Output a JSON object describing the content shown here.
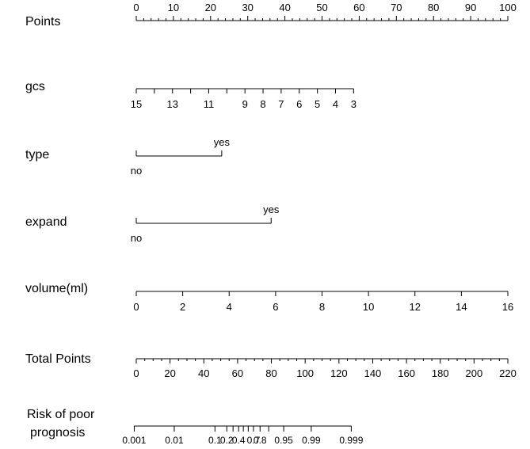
{
  "chart_data": {
    "type": "nomogram",
    "rows": [
      {
        "id": "points",
        "label": "Points",
        "kind": "numeric",
        "label_position": "above",
        "ticks": [
          0,
          10,
          20,
          30,
          40,
          50,
          60,
          70,
          80,
          90,
          100
        ],
        "minor_step": 2,
        "points_range": [
          0,
          100
        ]
      },
      {
        "id": "gcs",
        "label": "gcs",
        "kind": "numeric",
        "label_position": "below",
        "value_range": [
          15,
          3
        ],
        "points_range": [
          0,
          58.5
        ],
        "ticks": [
          15,
          13,
          11,
          9,
          8,
          7,
          6,
          5,
          4,
          3
        ],
        "unlabeled_ticks": [
          14,
          12,
          10
        ]
      },
      {
        "id": "type",
        "label": "type",
        "kind": "categorical",
        "levels": [
          {
            "label": "no",
            "points": 0,
            "label_side": "below"
          },
          {
            "label": "yes",
            "points": 23,
            "label_side": "above"
          }
        ]
      },
      {
        "id": "expand",
        "label": "expand",
        "kind": "categorical",
        "levels": [
          {
            "label": "no",
            "points": 0,
            "label_side": "below"
          },
          {
            "label": "yes",
            "points": 36.3,
            "label_side": "above"
          }
        ]
      },
      {
        "id": "volume",
        "label": "volume(ml)",
        "kind": "numeric",
        "label_position": "below",
        "value_range": [
          0,
          16
        ],
        "points_range": [
          0,
          100
        ],
        "ticks": [
          0,
          2,
          4,
          6,
          8,
          10,
          12,
          14,
          16
        ]
      },
      {
        "id": "total",
        "label": "Total Points",
        "kind": "numeric",
        "label_position": "below",
        "value_range": [
          0,
          220
        ],
        "ticks": [
          0,
          20,
          40,
          60,
          80,
          100,
          120,
          140,
          160,
          180,
          200,
          220
        ],
        "minor_step": 5
      },
      {
        "id": "risk",
        "label": [
          "Risk of poor",
          "prognosis"
        ],
        "kind": "probability",
        "label_position": "below",
        "ticks": [
          {
            "label": "0.001",
            "total_points": -1.2
          },
          {
            "label": "0.01",
            "total_points": 22.5
          },
          {
            "label": "0.1",
            "total_points": 46.6
          },
          {
            "label": "0.2",
            "total_points": 53.6
          },
          {
            "label": "0.4",
            "total_points": 60.6
          },
          {
            "label": "0.7",
            "total_points": 69.4
          },
          {
            "label": "0.8",
            "total_points": 73.3
          },
          {
            "label": "0.95",
            "total_points": 87.3
          },
          {
            "label": "0.99",
            "total_points": 103.6
          },
          {
            "label": "0.999",
            "total_points": 127.3
          }
        ],
        "unlabeled_ticks": [
          {
            "label": "0.3",
            "total_points": 57.3
          },
          {
            "label": "0.5",
            "total_points": 63.4
          },
          {
            "label": "0.6",
            "total_points": 66.3
          },
          {
            "label": "0.9",
            "total_points": 78.4
          }
        ]
      }
    ]
  }
}
